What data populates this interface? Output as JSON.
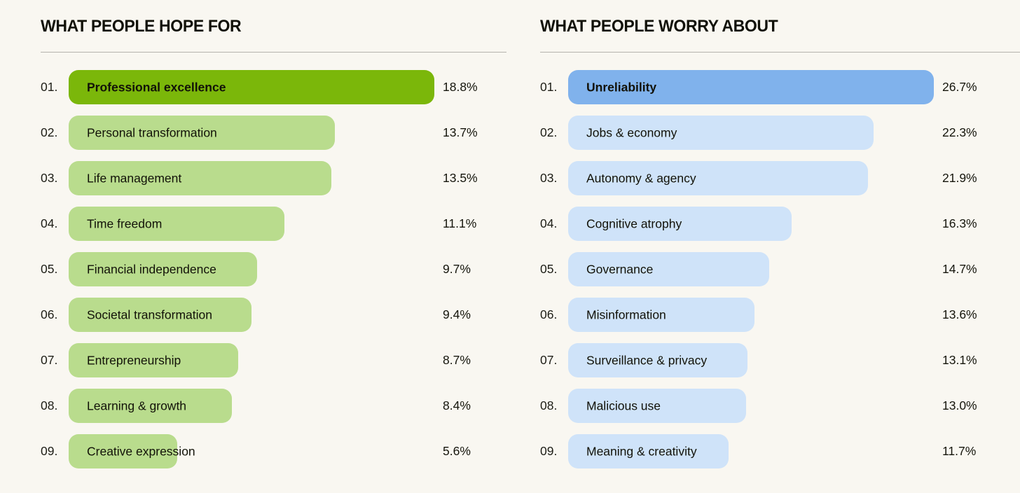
{
  "page": {
    "background_color": "#f9f7f1",
    "divider_color": "#b5b3ad"
  },
  "chart_data": [
    {
      "type": "bar",
      "orientation": "horizontal",
      "title": "WHAT PEOPLE HOPE FOR",
      "legend_position": "none",
      "grid": false,
      "top_bar_color": "#7bb70a",
      "bar_color": "#b9dc8d",
      "rank_labels": [
        "01.",
        "02.",
        "03.",
        "04.",
        "05.",
        "06.",
        "07.",
        "08.",
        "09."
      ],
      "categories": [
        "Professional excellence",
        "Personal transformation",
        "Life management",
        "Time freedom",
        "Financial independence",
        "Societal transformation",
        "Entrepreneurship",
        "Learning & growth",
        "Creative expression"
      ],
      "values": [
        18.8,
        13.7,
        13.5,
        11.1,
        9.7,
        9.4,
        8.7,
        8.4,
        5.6
      ],
      "value_labels": [
        "18.8%",
        "13.7%",
        "13.5%",
        "11.1%",
        "9.7%",
        "9.4%",
        "8.7%",
        "8.4%",
        "5.6%"
      ]
    },
    {
      "type": "bar",
      "orientation": "horizontal",
      "title": "WHAT PEOPLE WORRY ABOUT",
      "legend_position": "none",
      "grid": false,
      "top_bar_color": "#80b2ec",
      "bar_color": "#cfe3f9",
      "rank_labels": [
        "01.",
        "02.",
        "03.",
        "04.",
        "05.",
        "06.",
        "07.",
        "08.",
        "09."
      ],
      "categories": [
        "Unreliability",
        "Jobs & economy",
        "Autonomy & agency",
        "Cognitive atrophy",
        "Governance",
        "Misinformation",
        "Surveillance & privacy",
        "Malicious use",
        "Meaning & creativity"
      ],
      "values": [
        26.7,
        22.3,
        21.9,
        16.3,
        14.7,
        13.6,
        13.1,
        13.0,
        11.7
      ],
      "value_labels": [
        "26.7%",
        "22.3%",
        "21.9%",
        "16.3%",
        "14.7%",
        "13.6%",
        "13.1%",
        "13.0%",
        "11.7%"
      ]
    }
  ]
}
